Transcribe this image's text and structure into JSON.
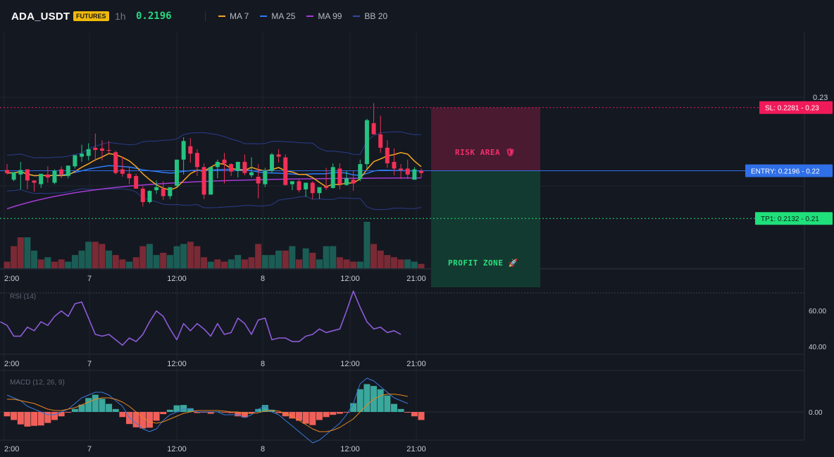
{
  "header": {
    "symbol": "ADA_USDT",
    "badge": "FUTURES",
    "timeframe": "1h",
    "price": "0.2196",
    "legend": [
      {
        "label": "MA 7",
        "color": "#f5a623"
      },
      {
        "label": "MA 25",
        "color": "#2f7bf5"
      },
      {
        "label": "MA 99",
        "color": "#a43bd6"
      },
      {
        "label": "BB 20",
        "color": "#2f47a8"
      }
    ]
  },
  "colors": {
    "up": "#26c281",
    "down": "#f23056",
    "vol_up": "#1b5d55",
    "vol_down": "#7a2a35",
    "rsi": "#8d5bd8",
    "macd": "#3a78d8",
    "macd_signal": "#e8861f",
    "hist_up": "#3aa89d",
    "hist_down": "#f0605a",
    "sl": "#f01a5a",
    "entry": "#2f6fe8",
    "tp": "#1fe07a"
  },
  "chart_data": [
    {
      "type": "candlestick",
      "x_ticks": [
        "2:00",
        "7",
        "12:00",
        "8",
        "12:00",
        "21:00"
      ],
      "y_ticks": [
        "0.23"
      ],
      "ylim": [
        0.2065,
        0.2382
      ],
      "levels": [
        {
          "label": "SL: 0.2281",
          "axis": "0.23",
          "value": 0.2281,
          "color": "#f01a5a"
        },
        {
          "label": "ENTRY: 0.2196",
          "axis": "0.22",
          "value": 0.2196,
          "color": "#2f6fe8"
        },
        {
          "label": "TP1: 0.2132",
          "axis": "0.21",
          "value": 0.2132,
          "color": "#1fe07a"
        }
      ],
      "zones": {
        "risk": "RISK AREA",
        "profit": "PROFIT ZONE"
      },
      "candles": [
        [
          0.2197,
          0.2205,
          0.2193,
          0.2191
        ],
        [
          0.2184,
          0.2191,
          0.2194,
          0.2182
        ],
        [
          0.2191,
          0.2208,
          0.2197,
          0.2171
        ],
        [
          0.2198,
          0.2197,
          0.2183,
          0.2171
        ],
        [
          0.2183,
          0.2182,
          0.218,
          0.2168
        ],
        [
          0.2178,
          0.2189,
          0.2192,
          0.2173
        ],
        [
          0.2191,
          0.2202,
          0.2187,
          0.218
        ],
        [
          0.218,
          0.2198,
          0.2196,
          0.2178
        ],
        [
          0.2198,
          0.2202,
          0.2191,
          0.2186
        ],
        [
          0.2189,
          0.2191,
          0.2203,
          0.2186
        ],
        [
          0.2202,
          0.2215,
          0.2217,
          0.2199
        ],
        [
          0.2215,
          0.2231,
          0.2219,
          0.2208
        ],
        [
          0.2216,
          0.2233,
          0.2225,
          0.221
        ],
        [
          0.2227,
          0.2246,
          0.2224,
          0.2209
        ],
        [
          0.2226,
          0.2237,
          0.2223,
          0.221
        ],
        [
          0.2224,
          0.2236,
          0.2223,
          0.2219
        ],
        [
          0.2221,
          0.2223,
          0.2193,
          0.2191
        ],
        [
          0.2198,
          0.2215,
          0.2192,
          0.2188
        ],
        [
          0.2192,
          0.2202,
          0.2186,
          0.2178
        ],
        [
          0.2189,
          0.2192,
          0.2172,
          0.2172
        ],
        [
          0.2172,
          0.2175,
          0.2154,
          0.2148
        ],
        [
          0.2154,
          0.217,
          0.2169,
          0.2152
        ],
        [
          0.217,
          0.2183,
          0.2174,
          0.2165
        ],
        [
          0.2172,
          0.2182,
          0.2162,
          0.2157
        ],
        [
          0.2162,
          0.217,
          0.2174,
          0.2158
        ],
        [
          0.2176,
          0.2206,
          0.2211,
          0.2174
        ],
        [
          0.2211,
          0.2241,
          0.2236,
          0.2191
        ],
        [
          0.2229,
          0.224,
          0.2219,
          0.2207
        ],
        [
          0.222,
          0.2225,
          0.2201,
          0.2189
        ],
        [
          0.2201,
          0.2206,
          0.2164,
          0.2158
        ],
        [
          0.2164,
          0.2191,
          0.2201,
          0.2164
        ],
        [
          0.2201,
          0.2211,
          0.2208,
          0.2186
        ],
        [
          0.2211,
          0.222,
          0.2206,
          0.2179
        ],
        [
          0.2205,
          0.2206,
          0.2195,
          0.2189
        ],
        [
          0.2196,
          0.2208,
          0.2208,
          0.2187
        ],
        [
          0.2208,
          0.2218,
          0.2193,
          0.219
        ],
        [
          0.219,
          0.2214,
          0.2194,
          0.2187
        ],
        [
          0.2188,
          0.2205,
          0.2179,
          0.2159
        ],
        [
          0.2178,
          0.22,
          0.2196,
          0.2174
        ],
        [
          0.2196,
          0.222,
          0.2218,
          0.2193
        ],
        [
          0.2218,
          0.2225,
          0.2215,
          0.2207
        ],
        [
          0.2214,
          0.2218,
          0.2177,
          0.2176
        ],
        [
          0.2178,
          0.218,
          0.2182,
          0.217
        ],
        [
          0.2182,
          0.2184,
          0.217,
          0.2167
        ],
        [
          0.2171,
          0.2179,
          0.218,
          0.2161
        ],
        [
          0.218,
          0.2182,
          0.2166,
          0.2158
        ],
        [
          0.2166,
          0.2171,
          0.2174,
          0.2158
        ],
        [
          0.2175,
          0.22,
          0.2173,
          0.217
        ],
        [
          0.2173,
          0.2206,
          0.2201,
          0.2172
        ],
        [
          0.2199,
          0.2206,
          0.2178,
          0.2171
        ],
        [
          0.2177,
          0.2196,
          0.2186,
          0.2176
        ],
        [
          0.2184,
          0.2196,
          0.2179,
          0.2169
        ],
        [
          0.2185,
          0.2211,
          0.2205,
          0.2182
        ],
        [
          0.2205,
          0.2266,
          0.2264,
          0.2199
        ],
        [
          0.226,
          0.2287,
          0.2245,
          0.2245
        ],
        [
          0.2245,
          0.227,
          0.2227,
          0.222
        ],
        [
          0.2227,
          0.2237,
          0.2206,
          0.22
        ],
        [
          0.2208,
          0.2226,
          0.2199,
          0.219
        ],
        [
          0.2199,
          0.2205,
          0.2197,
          0.2185
        ],
        [
          0.2199,
          0.2211,
          0.2191,
          0.2185
        ],
        [
          0.2184,
          0.2201,
          0.2198,
          0.2186
        ],
        [
          0.2196,
          0.2199,
          0.2193,
          0.2187
        ]
      ],
      "volume": [
        3,
        10,
        14,
        14,
        8,
        4,
        5,
        3,
        4,
        3,
        6,
        8,
        12,
        12,
        11,
        8,
        6,
        4,
        3,
        5,
        10,
        11,
        6,
        7,
        6,
        10,
        11,
        12,
        10,
        5,
        3,
        4,
        3,
        4,
        6,
        4,
        5,
        11,
        6,
        6,
        8,
        8,
        10,
        4,
        9,
        7,
        4,
        10,
        10,
        5,
        4,
        3,
        3,
        21,
        11,
        8,
        6,
        5,
        4,
        4,
        3,
        2
      ],
      "volume_up": [
        false,
        false,
        false,
        true,
        true,
        false,
        true,
        false,
        false,
        true,
        true,
        true,
        true,
        false,
        false,
        true,
        false,
        false,
        true,
        false,
        false,
        true,
        true,
        false,
        true,
        true,
        true,
        false,
        false,
        false,
        true,
        false,
        false,
        true,
        true,
        false,
        false,
        false,
        true,
        true,
        true,
        false,
        true,
        false,
        true,
        false,
        true,
        true,
        true,
        false,
        false,
        false,
        true,
        true,
        false,
        false,
        false,
        false,
        false,
        true,
        true,
        false
      ]
    },
    {
      "type": "line",
      "label": "RSI (14)",
      "y_ticks": [
        "60.00",
        "40.00"
      ],
      "ylim": [
        38,
        72
      ],
      "values": [
        56,
        54,
        48,
        48,
        53,
        51,
        56,
        54,
        59,
        62,
        59,
        66,
        67,
        58,
        49,
        48,
        49,
        46,
        43,
        47,
        45,
        49,
        56,
        62,
        59,
        52,
        46,
        55,
        51,
        55,
        52,
        48,
        55,
        49,
        50,
        58,
        55,
        49,
        57,
        58,
        46,
        47,
        47,
        45,
        45,
        48,
        49,
        52,
        50,
        51,
        52,
        62,
        73,
        64,
        56,
        52,
        53,
        50,
        51,
        49
      ]
    },
    {
      "type": "bar",
      "label": "MACD (12, 26, 9)",
      "y_ticks": [
        "0.00"
      ],
      "histogram": [
        -1.2,
        -2.2,
        -3.4,
        -4.0,
        -3.8,
        -3.7,
        -3.0,
        -2.2,
        -1.2,
        -0.2,
        0.8,
        2.0,
        3.8,
        4.7,
        3.6,
        2.2,
        0.8,
        -1.4,
        -3.3,
        -4.2,
        -4.5,
        -4.3,
        -2.4,
        -0.6,
        0.6,
        1.8,
        1.9,
        1.0,
        -0.3,
        -0.2,
        -0.5,
        0.1,
        -0.2,
        -0.3,
        -1.2,
        -1.5,
        -0.3,
        0.8,
        1.9,
        0.6,
        -0.3,
        -1.2,
        -1.8,
        -2.4,
        -3.2,
        -3.6,
        -2.2,
        -1.4,
        -0.8,
        -0.5,
        -0.1,
        2.4,
        6.2,
        7.6,
        7.1,
        6.2,
        4.5,
        2.2,
        0.8,
        -0.2,
        -1.2,
        -2.2
      ],
      "macd": [
        6,
        5,
        4,
        2,
        1,
        0,
        -1,
        -1,
        0,
        1,
        3,
        5,
        6,
        7,
        7,
        6,
        4,
        2,
        -2,
        -4,
        -6,
        -7,
        -6,
        -3,
        -1,
        0,
        1,
        1,
        0,
        0,
        0,
        0,
        -1,
        -1,
        -1,
        -2,
        -1,
        1,
        2,
        0,
        -1,
        -3,
        -5,
        -7,
        -9,
        -11,
        -10,
        -8,
        -6,
        -4,
        -1,
        3,
        10,
        12,
        11,
        9,
        7,
        5,
        4,
        3
      ],
      "signal": [
        4.5,
        4.5,
        4,
        3.5,
        3,
        2,
        1,
        0.5,
        0.5,
        1,
        1.5,
        2.5,
        3.5,
        4.5,
        5,
        5,
        4.5,
        3.5,
        2,
        0,
        -2,
        -3.5,
        -4,
        -3.5,
        -2.5,
        -1.5,
        -0.5,
        0,
        0.5,
        0.5,
        0.5,
        0.5,
        0.3,
        0,
        0,
        -0.5,
        -0.5,
        -0.3,
        0.3,
        0.5,
        0.3,
        -0.5,
        -1.5,
        -3,
        -4.5,
        -6,
        -7,
        -7,
        -6.5,
        -5.5,
        -4,
        -2.5,
        0,
        2.5,
        4.5,
        5.8,
        6.3,
        6.3,
        6,
        5.5
      ]
    }
  ]
}
